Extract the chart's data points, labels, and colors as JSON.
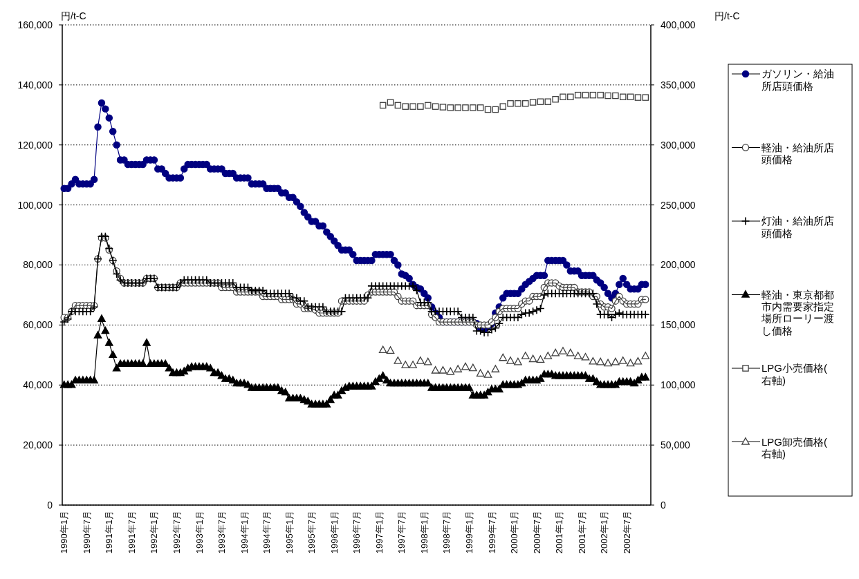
{
  "chart_data": {
    "type": "line",
    "ylabel": "円/t-C",
    "y2label": "円/t-C",
    "categories": [
      "1990年1月",
      null,
      null,
      null,
      null,
      null,
      "1990年7月",
      null,
      null,
      null,
      null,
      null,
      "1991年1月",
      null,
      null,
      null,
      null,
      null,
      "1991年7月",
      null,
      null,
      null,
      null,
      null,
      "1992年1月",
      null,
      null,
      null,
      null,
      null,
      "1992年7月",
      null,
      null,
      null,
      null,
      null,
      "1993年1月",
      null,
      null,
      null,
      null,
      null,
      "1993年7月",
      null,
      null,
      null,
      null,
      null,
      "1994年1月",
      null,
      null,
      null,
      null,
      null,
      "1994年7月",
      null,
      null,
      null,
      null,
      null,
      "1995年1月",
      null,
      null,
      null,
      null,
      null,
      "1995年7月",
      null,
      null,
      null,
      null,
      null,
      "1996年1月",
      null,
      null,
      null,
      null,
      null,
      "1996年7月",
      null,
      null,
      null,
      null,
      null,
      "1997年1月",
      null,
      null,
      null,
      null,
      null,
      "1997年7月",
      null,
      null,
      null,
      null,
      null,
      "1998年1月",
      null,
      null,
      null,
      null,
      null,
      "1998年7月",
      null,
      null,
      null,
      null,
      null,
      "1999年1月",
      null,
      null,
      null,
      null,
      null,
      "1999年7月",
      null,
      null,
      null,
      null,
      null,
      "2000年1月",
      null,
      null,
      null,
      null,
      null,
      "2000年7月",
      null,
      null,
      null,
      null,
      null,
      "2001年1月",
      null,
      null,
      null,
      null,
      null,
      "2001年7月",
      null,
      null,
      null,
      null,
      null,
      "2002年1月",
      null,
      null,
      null,
      null,
      null,
      "2002年7月",
      null,
      null,
      null,
      null,
      null
    ],
    "ylim": [
      0,
      160000
    ],
    "yticks": [
      {
        "value": 0,
        "label": "0"
      },
      {
        "value": 20000,
        "label": "20,000"
      },
      {
        "value": 40000,
        "label": "40,000"
      },
      {
        "value": 60000,
        "label": "60,000"
      },
      {
        "value": 80000,
        "label": "80,000"
      },
      {
        "value": 100000,
        "label": "100,000"
      },
      {
        "value": 120000,
        "label": "120,000"
      },
      {
        "value": 140000,
        "label": "140,000"
      },
      {
        "value": 160000,
        "label": "160,000"
      }
    ],
    "y2lim": [
      0,
      400000
    ],
    "y2ticks": [
      {
        "value": 0,
        "label": "0"
      },
      {
        "value": 50000,
        "label": "50,000"
      },
      {
        "value": 100000,
        "label": "100,000"
      },
      {
        "value": 150000,
        "label": "150,000"
      },
      {
        "value": 200000,
        "label": "200,000"
      },
      {
        "value": 250000,
        "label": "250,000"
      },
      {
        "value": 300000,
        "label": "300,000"
      },
      {
        "value": 350000,
        "label": "350,000"
      },
      {
        "value": 400000,
        "label": "400,000"
      }
    ],
    "grid": "y",
    "legend": "right",
    "series": [
      {
        "name": "ガソリン・給油所店頭価格",
        "color": "#000080",
        "marker": "circle",
        "values": [
          105500,
          105500,
          107000,
          108500,
          107000,
          107000,
          107000,
          107000,
          108500,
          126000,
          134000,
          132000,
          129000,
          124500,
          120000,
          115000,
          115000,
          113500,
          113500,
          113500,
          113500,
          113500,
          115000,
          115000,
          115000,
          112000,
          112000,
          110500,
          109000,
          109000,
          109000,
          109000,
          112000,
          113500,
          113500,
          113500,
          113500,
          113500,
          113500,
          112000,
          112000,
          112000,
          112000,
          110500,
          110500,
          110500,
          109000,
          109000,
          109000,
          109000,
          107000,
          107000,
          107000,
          107000,
          105500,
          105500,
          105500,
          105500,
          104000,
          104000,
          102500,
          102500,
          101000,
          99500,
          97500,
          96000,
          94500,
          94500,
          93000,
          93000,
          91000,
          89500,
          88000,
          86500,
          85000,
          85000,
          85000,
          83500,
          81500,
          81500,
          81500,
          81500,
          81500,
          83500,
          83500,
          83500,
          83500,
          83500,
          81500,
          80000,
          77000,
          76500,
          75500,
          73500,
          72500,
          72000,
          70500,
          69000,
          66000,
          64000,
          62500,
          61000,
          61000,
          61000,
          61000,
          61000,
          61000,
          61000,
          61000,
          61000,
          60500,
          59000,
          58500,
          59500,
          60500,
          64000,
          66000,
          69000,
          70500,
          70500,
          70500,
          70500,
          72000,
          73500,
          74500,
          75500,
          76500,
          76500,
          76500,
          81500,
          81500,
          81500,
          81500,
          81500,
          80000,
          78000,
          78000,
          78000,
          76500,
          76500,
          76500,
          76500,
          75000,
          74000,
          72500,
          70500,
          69000,
          70500,
          73500,
          75500,
          73500,
          72000,
          72000,
          72000,
          73500,
          73500
        ]
      },
      {
        "name": "軽油・給油所店頭価格",
        "color": "#404040",
        "marker": "circle",
        "values": [
          62500,
          62500,
          64500,
          66500,
          66500,
          66500,
          66500,
          66500,
          66500,
          82000,
          89000,
          89000,
          85000,
          81500,
          78000,
          75500,
          74000,
          74000,
          74000,
          74000,
          74000,
          74000,
          75500,
          75500,
          75500,
          72500,
          72500,
          72500,
          72500,
          72500,
          72500,
          74000,
          74000,
          74000,
          74000,
          74000,
          74000,
          74000,
          74000,
          74000,
          74000,
          74000,
          72500,
          72500,
          72500,
          72500,
          71000,
          71000,
          71000,
          71000,
          71000,
          71000,
          71000,
          69500,
          69500,
          69500,
          69500,
          69500,
          68500,
          68500,
          68500,
          68500,
          67000,
          67000,
          65500,
          65500,
          65500,
          65000,
          64000,
          64000,
          64000,
          64000,
          64000,
          64000,
          68000,
          68000,
          68000,
          68000,
          68000,
          68000,
          68000,
          70000,
          71000,
          71000,
          71000,
          71000,
          71000,
          71000,
          71000,
          69500,
          68000,
          68000,
          68000,
          68000,
          66500,
          66500,
          66500,
          66500,
          63500,
          62500,
          61000,
          61000,
          61000,
          61000,
          61000,
          61000,
          61000,
          61000,
          61000,
          61000,
          60000,
          60000,
          60000,
          60000,
          61000,
          62500,
          64500,
          65500,
          65500,
          65500,
          65500,
          65500,
          67000,
          68000,
          68000,
          69500,
          69500,
          69500,
          72500,
          74000,
          74000,
          74000,
          73000,
          72500,
          72500,
          72500,
          72500,
          71000,
          71000,
          71000,
          71000,
          69500,
          69500,
          67000,
          66000,
          66000,
          65500,
          68000,
          69500,
          68000,
          67000,
          67000,
          67000,
          67000,
          68500,
          68500
        ]
      },
      {
        "name": "灯油・給油所店頭価格",
        "color": "#000000",
        "marker": "cross",
        "values": [
          61000,
          62000,
          64500,
          64500,
          64500,
          64500,
          64500,
          64500,
          66000,
          82000,
          89500,
          89500,
          85500,
          81500,
          77000,
          75000,
          74000,
          74000,
          74000,
          74000,
          74000,
          74000,
          75500,
          75500,
          75500,
          72500,
          72500,
          72500,
          72500,
          72500,
          72500,
          74000,
          75000,
          75000,
          75000,
          75000,
          75000,
          75000,
          75000,
          74000,
          74000,
          74000,
          74000,
          74000,
          74000,
          74000,
          72500,
          72500,
          72500,
          72500,
          71500,
          71500,
          71500,
          71500,
          70500,
          70500,
          70500,
          70500,
          70500,
          70500,
          70500,
          69000,
          69000,
          68000,
          68000,
          66000,
          66000,
          66000,
          66000,
          66000,
          64500,
          64500,
          64500,
          64500,
          64500,
          69000,
          69000,
          69000,
          69000,
          69000,
          69000,
          69000,
          73000,
          73000,
          73000,
          73000,
          73000,
          73000,
          73000,
          73000,
          73000,
          73000,
          73000,
          73000,
          71500,
          67500,
          67500,
          67500,
          64500,
          64500,
          64500,
          64500,
          64500,
          64500,
          64500,
          64500,
          62500,
          62500,
          62500,
          62500,
          58000,
          58000,
          57500,
          57500,
          58500,
          59000,
          60500,
          62500,
          62500,
          62500,
          62500,
          62500,
          63500,
          64000,
          64000,
          64500,
          65000,
          65500,
          70000,
          70500,
          70500,
          70500,
          70500,
          70500,
          70500,
          70500,
          70500,
          70500,
          70500,
          70500,
          70500,
          70500,
          67000,
          63500,
          63500,
          63500,
          62500,
          63500,
          64000,
          63500,
          63500,
          63500,
          63500,
          63500,
          63500,
          63500
        ]
      },
      {
        "name": "軽油・東京都都市内需要家指定場所ローリー渡し価格",
        "color": "#000000",
        "marker": "triangle",
        "values": [
          40000,
          40000,
          40000,
          41500,
          41500,
          41500,
          41500,
          41500,
          41500,
          56500,
          62000,
          58000,
          54000,
          50000,
          45500,
          47000,
          47000,
          47000,
          47000,
          47000,
          47000,
          47000,
          54000,
          47000,
          47000,
          47000,
          47000,
          47000,
          45500,
          44000,
          44000,
          44000,
          44500,
          45500,
          46000,
          46000,
          46000,
          46000,
          46000,
          45500,
          44000,
          44000,
          43000,
          42000,
          42000,
          41500,
          40500,
          40500,
          40500,
          40000,
          39000,
          39000,
          39000,
          39000,
          39000,
          39000,
          39000,
          39000,
          38000,
          37500,
          35500,
          35500,
          35500,
          35500,
          35000,
          34500,
          33500,
          33500,
          33500,
          33500,
          33500,
          35000,
          36500,
          36500,
          38000,
          39000,
          39500,
          39500,
          39500,
          39500,
          39500,
          39500,
          39500,
          41000,
          42000,
          43000,
          41500,
          40500,
          40500,
          40500,
          40500,
          40500,
          40500,
          40500,
          40500,
          40500,
          40500,
          40500,
          39000,
          39000,
          39000,
          39000,
          39000,
          39000,
          39000,
          39000,
          39000,
          39000,
          39000,
          36500,
          36500,
          36500,
          36500,
          37500,
          38500,
          38500,
          38500,
          40000,
          40000,
          40000,
          40000,
          40000,
          40500,
          41500,
          41500,
          41500,
          41500,
          42000,
          43500,
          43500,
          43500,
          43000,
          43000,
          43000,
          43000,
          43000,
          43000,
          43000,
          43000,
          43000,
          42000,
          42000,
          41000,
          40000,
          40000,
          40000,
          40000,
          40000,
          41000,
          41000,
          41000,
          41000,
          40500,
          41500,
          42500,
          42500
        ]
      },
      {
        "name": "LPG小売価格(右軸)",
        "type": "scatter",
        "color": "#404040",
        "marker": "square",
        "axis": "y2",
        "values": [
          null,
          null,
          null,
          null,
          null,
          null,
          null,
          null,
          null,
          null,
          null,
          null,
          null,
          null,
          null,
          null,
          null,
          null,
          null,
          null,
          null,
          null,
          null,
          null,
          null,
          null,
          null,
          null,
          null,
          null,
          null,
          null,
          null,
          null,
          null,
          null,
          null,
          null,
          null,
          null,
          null,
          null,
          null,
          null,
          null,
          null,
          null,
          null,
          null,
          null,
          null,
          null,
          null,
          null,
          null,
          null,
          null,
          null,
          null,
          null,
          null,
          null,
          null,
          null,
          null,
          null,
          null,
          null,
          null,
          null,
          null,
          null,
          null,
          null,
          null,
          null,
          null,
          null,
          null,
          null,
          null,
          null,
          null,
          null,
          null,
          333000,
          null,
          335500,
          null,
          333000,
          null,
          332000,
          null,
          332000,
          null,
          332000,
          null,
          333000,
          null,
          332000,
          null,
          331500,
          null,
          331000,
          null,
          331000,
          null,
          331000,
          null,
          331000,
          null,
          331000,
          null,
          329500,
          null,
          329500,
          null,
          332000,
          null,
          334500,
          null,
          334500,
          null,
          334500,
          null,
          335500,
          null,
          336000,
          null,
          336000,
          null,
          338000,
          null,
          340000,
          null,
          340000,
          null,
          341500,
          null,
          341500,
          null,
          341500,
          null,
          341500,
          null,
          341000,
          null,
          341000,
          null,
          340000,
          null,
          340000,
          null,
          339500,
          null,
          339500
        ]
      },
      {
        "name": "LPG卸売価格(右軸)",
        "type": "scatter",
        "color": "#404040",
        "marker": "triangle",
        "axis": "y2",
        "values": [
          null,
          null,
          null,
          null,
          null,
          null,
          null,
          null,
          null,
          null,
          null,
          null,
          null,
          null,
          null,
          null,
          null,
          null,
          null,
          null,
          null,
          null,
          null,
          null,
          null,
          null,
          null,
          null,
          null,
          null,
          null,
          null,
          null,
          null,
          null,
          null,
          null,
          null,
          null,
          null,
          null,
          null,
          null,
          null,
          null,
          null,
          null,
          null,
          null,
          null,
          null,
          null,
          null,
          null,
          null,
          null,
          null,
          null,
          null,
          null,
          null,
          null,
          null,
          null,
          null,
          null,
          null,
          null,
          null,
          null,
          null,
          null,
          null,
          null,
          null,
          null,
          null,
          null,
          null,
          null,
          null,
          null,
          null,
          null,
          null,
          129000,
          null,
          128500,
          null,
          120000,
          null,
          116500,
          null,
          116500,
          null,
          120000,
          null,
          119000,
          null,
          112000,
          null,
          112000,
          null,
          111000,
          null,
          113000,
          null,
          115000,
          null,
          114000,
          null,
          109500,
          null,
          108500,
          null,
          113000,
          null,
          122500,
          null,
          120000,
          null,
          119000,
          null,
          124000,
          null,
          121500,
          null,
          121000,
          null,
          124000,
          null,
          126500,
          null,
          128000,
          null,
          126500,
          null,
          124000,
          null,
          123000,
          null,
          119500,
          null,
          119000,
          null,
          118000,
          null,
          119000,
          null,
          120000,
          null,
          118000,
          null,
          119500,
          null,
          124000
        ]
      }
    ]
  }
}
